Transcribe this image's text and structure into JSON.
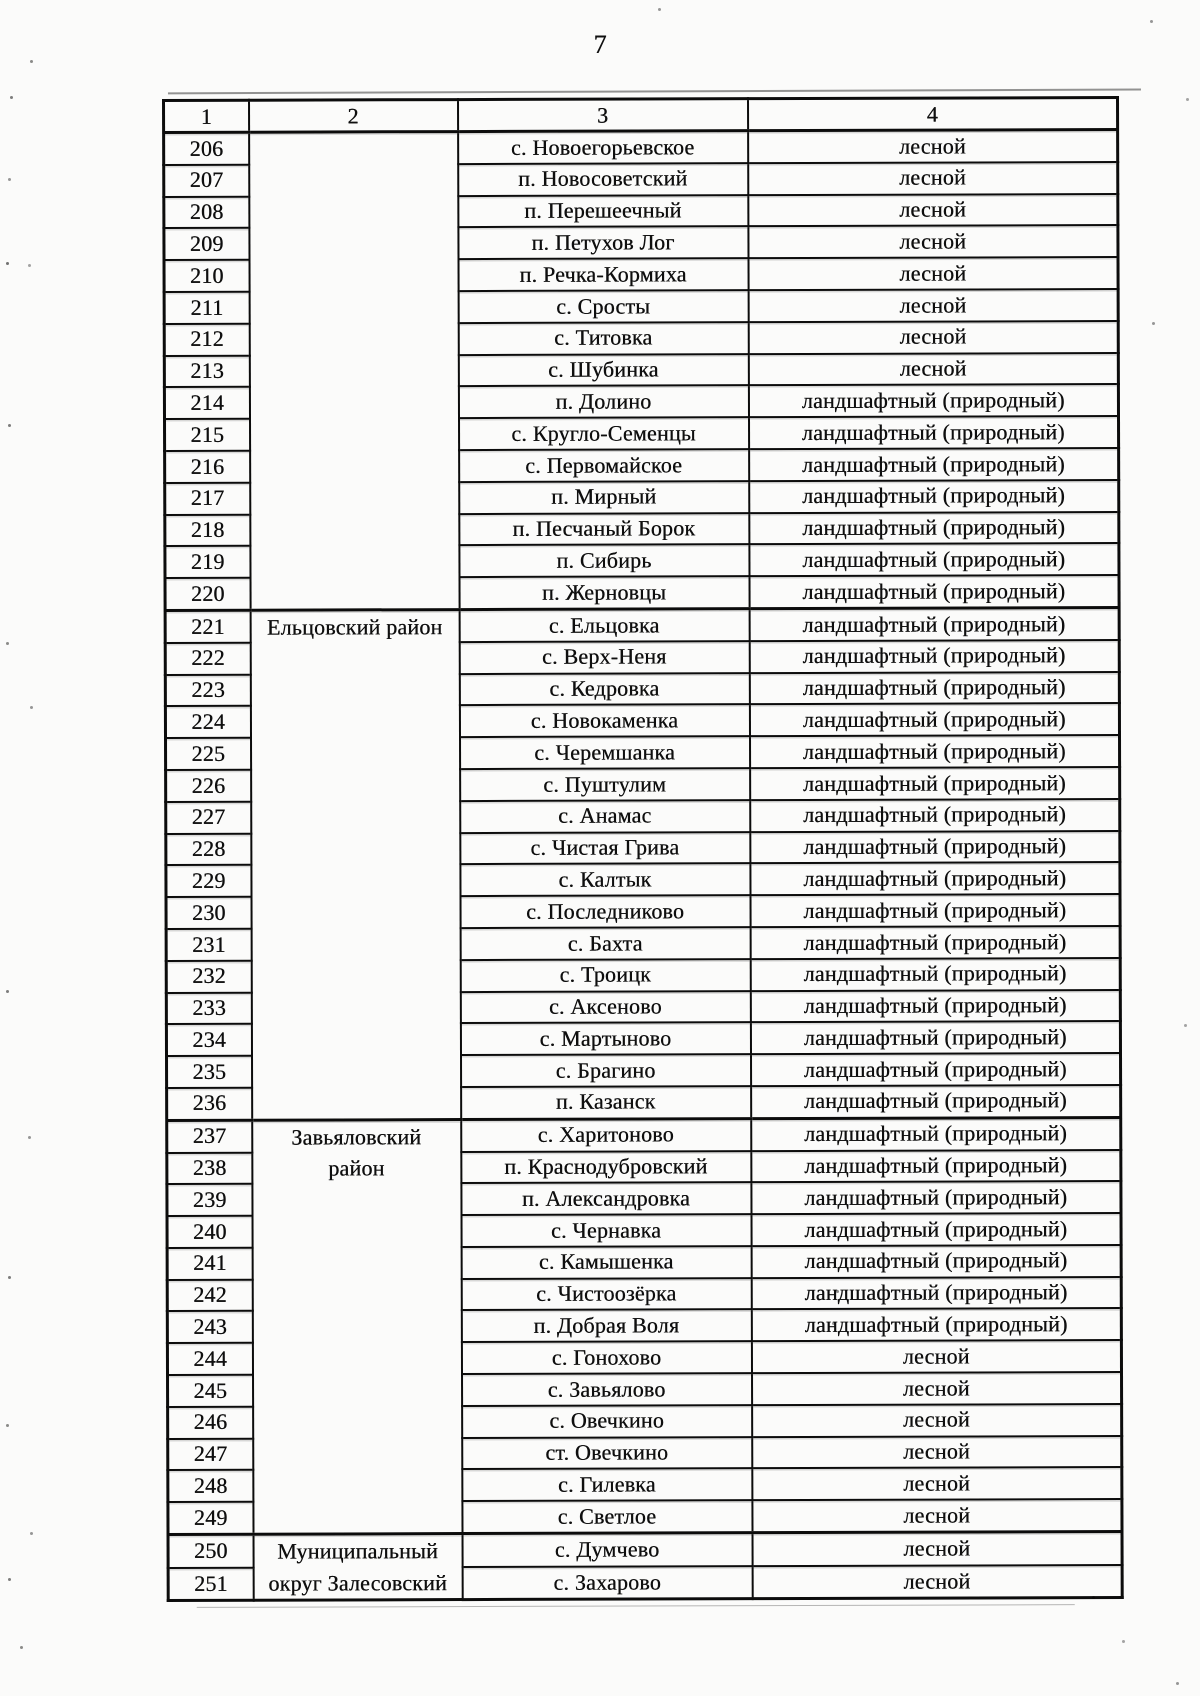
{
  "page": {
    "number": "7"
  },
  "colors": {
    "ink": "#0f0f0f",
    "paper": "#fbfbfa"
  },
  "table": {
    "headers": [
      "1",
      "2",
      "3",
      "4"
    ],
    "district_groups": [
      {
        "label": "",
        "start_index": 0,
        "span": 15
      },
      {
        "label": "Ельцовский район",
        "start_index": 15,
        "span": 16
      },
      {
        "label": "Завьяловский\nрайон",
        "start_index": 31,
        "span": 13
      },
      {
        "label": "Муниципальный\nокруг Залесовский",
        "start_index": 44,
        "span": 2
      }
    ],
    "rows": [
      {
        "num": "206",
        "settlement": "с. Новоегорьевское",
        "type": "лесной"
      },
      {
        "num": "207",
        "settlement": "п. Новосоветский",
        "type": "лесной"
      },
      {
        "num": "208",
        "settlement": "п. Перешеечный",
        "type": "лесной"
      },
      {
        "num": "209",
        "settlement": "п. Петухов Лог",
        "type": "лесной"
      },
      {
        "num": "210",
        "settlement": "п. Речка-Кормиха",
        "type": "лесной"
      },
      {
        "num": "211",
        "settlement": "с. Сросты",
        "type": "лесной"
      },
      {
        "num": "212",
        "settlement": "с. Титовка",
        "type": "лесной"
      },
      {
        "num": "213",
        "settlement": "с. Шубинка",
        "type": "лесной"
      },
      {
        "num": "214",
        "settlement": "п. Долино",
        "type": "ландшафтный (природный)"
      },
      {
        "num": "215",
        "settlement": "с. Кругло-Семенцы",
        "type": "ландшафтный (природный)"
      },
      {
        "num": "216",
        "settlement": "с. Первомайское",
        "type": "ландшафтный (природный)"
      },
      {
        "num": "217",
        "settlement": "п. Мирный",
        "type": "ландшафтный (природный)"
      },
      {
        "num": "218",
        "settlement": "п. Песчаный Борок",
        "type": "ландшафтный (природный)"
      },
      {
        "num": "219",
        "settlement": "п. Сибирь",
        "type": "ландшафтный (природный)"
      },
      {
        "num": "220",
        "settlement": "п. Жерновцы",
        "type": "ландшафтный (природный)"
      },
      {
        "num": "221",
        "settlement": "с. Ельцовка",
        "type": "ландшафтный (природный)"
      },
      {
        "num": "222",
        "settlement": "с. Верх-Неня",
        "type": "ландшафтный (природный)"
      },
      {
        "num": "223",
        "settlement": "с. Кедровка",
        "type": "ландшафтный (природный)"
      },
      {
        "num": "224",
        "settlement": "с. Новокаменка",
        "type": "ландшафтный (природный)"
      },
      {
        "num": "225",
        "settlement": "с. Черемшанка",
        "type": "ландшафтный (природный)"
      },
      {
        "num": "226",
        "settlement": "с. Пуштулим",
        "type": "ландшафтный (природный)"
      },
      {
        "num": "227",
        "settlement": "с. Анамас",
        "type": "ландшафтный (природный)"
      },
      {
        "num": "228",
        "settlement": "с. Чистая Грива",
        "type": "ландшафтный (природный)"
      },
      {
        "num": "229",
        "settlement": "с. Калтык",
        "type": "ландшафтный (природный)"
      },
      {
        "num": "230",
        "settlement": "с. Последниково",
        "type": "ландшафтный (природный)"
      },
      {
        "num": "231",
        "settlement": "с. Бахта",
        "type": "ландшафтный (природный)"
      },
      {
        "num": "232",
        "settlement": "с. Троицк",
        "type": "ландшафтный (природный)"
      },
      {
        "num": "233",
        "settlement": "с. Аксеново",
        "type": "ландшафтный (природный)"
      },
      {
        "num": "234",
        "settlement": "с. Мартыново",
        "type": "ландшафтный (природный)"
      },
      {
        "num": "235",
        "settlement": "с. Брагино",
        "type": "ландшафтный (природный)"
      },
      {
        "num": "236",
        "settlement": "п. Казанск",
        "type": "ландшафтный (природный)"
      },
      {
        "num": "237",
        "settlement": "с. Харитоново",
        "type": "ландшафтный (природный)"
      },
      {
        "num": "238",
        "settlement": "п. Краснодубровский",
        "type": "ландшафтный (природный)"
      },
      {
        "num": "239",
        "settlement": "п. Александровка",
        "type": "ландшафтный (природный)"
      },
      {
        "num": "240",
        "settlement": "с. Чернавка",
        "type": "ландшафтный (природный)"
      },
      {
        "num": "241",
        "settlement": "с. Камышенка",
        "type": "ландшафтный (природный)"
      },
      {
        "num": "242",
        "settlement": "с. Чистоозёрка",
        "type": "ландшафтный (природный)"
      },
      {
        "num": "243",
        "settlement": "п. Добрая Воля",
        "type": "ландшафтный (природный)"
      },
      {
        "num": "244",
        "settlement": "с. Гонохово",
        "type": "лесной"
      },
      {
        "num": "245",
        "settlement": "с. Завьялово",
        "type": "лесной"
      },
      {
        "num": "246",
        "settlement": "с. Овечкино",
        "type": "лесной"
      },
      {
        "num": "247",
        "settlement": "ст. Овечкино",
        "type": "лесной"
      },
      {
        "num": "248",
        "settlement": "с. Гилевка",
        "type": "лесной"
      },
      {
        "num": "249",
        "settlement": "с. Светлое",
        "type": "лесной"
      },
      {
        "num": "250",
        "settlement": "с. Думчево",
        "type": "лесной"
      },
      {
        "num": "251",
        "settlement": "с. Захарово",
        "type": "лесной"
      }
    ]
  }
}
